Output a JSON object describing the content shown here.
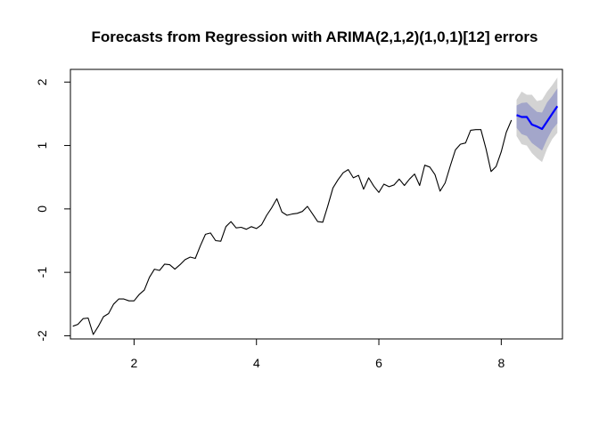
{
  "chart_data": {
    "type": "line",
    "title": "Forecasts from Regression with ARIMA(2,1,2)(1,0,1)[12] errors",
    "xlabel": "",
    "ylabel": "",
    "xlim": [
      0.96,
      9.0
    ],
    "ylim": [
      -2.05,
      2.2
    ],
    "xticks": [
      2,
      4,
      6,
      8
    ],
    "yticks": [
      -2,
      -1,
      0,
      1,
      2
    ],
    "grid": false,
    "legend": "none",
    "series": [
      {
        "role": "observed",
        "color": "#000000",
        "x": [
          1.0,
          1.083,
          1.167,
          1.25,
          1.333,
          1.417,
          1.5,
          1.583,
          1.667,
          1.75,
          1.833,
          1.917,
          2.0,
          2.083,
          2.167,
          2.25,
          2.333,
          2.417,
          2.5,
          2.583,
          2.667,
          2.75,
          2.833,
          2.917,
          3.0,
          3.083,
          3.167,
          3.25,
          3.333,
          3.417,
          3.5,
          3.583,
          3.667,
          3.75,
          3.833,
          3.917,
          4.0,
          4.083,
          4.167,
          4.25,
          4.333,
          4.417,
          4.5,
          4.583,
          4.667,
          4.75,
          4.833,
          4.917,
          5.0,
          5.083,
          5.167,
          5.25,
          5.333,
          5.417,
          5.5,
          5.583,
          5.667,
          5.75,
          5.833,
          5.917,
          6.0,
          6.083,
          6.167,
          6.25,
          6.333,
          6.417,
          6.5,
          6.583,
          6.667,
          6.75,
          6.833,
          6.917,
          7.0,
          7.083,
          7.167,
          7.25,
          7.333,
          7.417,
          7.5,
          7.583,
          7.667,
          7.75,
          7.833,
          7.917,
          8.0,
          8.083,
          8.167
        ],
        "y": [
          -1.85,
          -1.82,
          -1.73,
          -1.72,
          -1.98,
          -1.85,
          -1.7,
          -1.65,
          -1.5,
          -1.42,
          -1.42,
          -1.45,
          -1.45,
          -1.35,
          -1.28,
          -1.08,
          -0.95,
          -0.97,
          -0.87,
          -0.88,
          -0.95,
          -0.88,
          -0.8,
          -0.76,
          -0.78,
          -0.58,
          -0.4,
          -0.38,
          -0.5,
          -0.51,
          -0.28,
          -0.2,
          -0.3,
          -0.29,
          -0.32,
          -0.28,
          -0.31,
          -0.25,
          -0.1,
          0.02,
          0.16,
          -0.05,
          -0.1,
          -0.08,
          -0.07,
          -0.04,
          0.04,
          -0.08,
          -0.2,
          -0.21,
          0.05,
          0.33,
          0.46,
          0.57,
          0.62,
          0.49,
          0.53,
          0.31,
          0.49,
          0.36,
          0.26,
          0.39,
          0.35,
          0.38,
          0.47,
          0.37,
          0.47,
          0.55,
          0.37,
          0.69,
          0.66,
          0.54,
          0.28,
          0.41,
          0.68,
          0.93,
          1.02,
          1.04,
          1.24,
          1.25,
          1.25,
          0.95,
          0.59,
          0.67,
          0.9,
          1.21,
          1.4
        ]
      },
      {
        "role": "forecast",
        "color": "#0000ff",
        "x": [
          8.25,
          8.333,
          8.417,
          8.5,
          8.583,
          8.667,
          8.75,
          8.833,
          8.917
        ],
        "y": [
          1.48,
          1.45,
          1.45,
          1.33,
          1.3,
          1.26,
          1.38,
          1.5,
          1.62
        ]
      }
    ],
    "intervals": [
      {
        "level": "95%",
        "color": "#d3d3d3",
        "x": [
          8.25,
          8.333,
          8.417,
          8.5,
          8.583,
          8.667,
          8.75,
          8.833,
          8.917
        ],
        "lower": [
          1.15,
          1.02,
          1.0,
          0.88,
          0.8,
          0.74,
          0.95,
          1.1,
          1.2
        ],
        "upper": [
          1.72,
          1.85,
          1.8,
          1.8,
          1.7,
          1.72,
          1.85,
          1.95,
          2.07
        ]
      },
      {
        "level": "80%",
        "color": "#a3a6ca",
        "x": [
          8.25,
          8.333,
          8.417,
          8.5,
          8.583,
          8.667,
          8.75,
          8.833,
          8.917
        ],
        "lower": [
          1.28,
          1.18,
          1.15,
          1.04,
          0.98,
          0.92,
          1.1,
          1.25,
          1.35
        ],
        "upper": [
          1.63,
          1.67,
          1.68,
          1.6,
          1.53,
          1.52,
          1.68,
          1.78,
          1.9
        ]
      }
    ]
  }
}
